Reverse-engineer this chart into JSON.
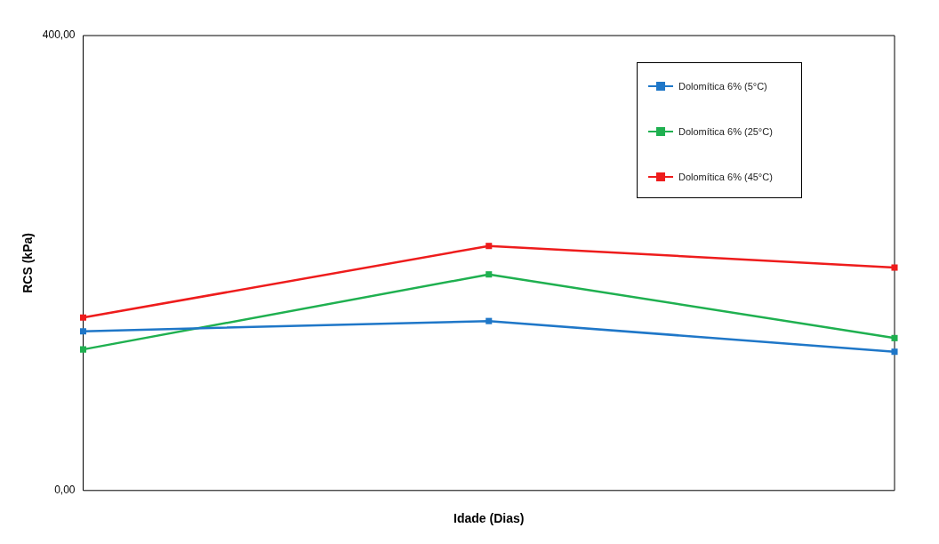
{
  "chart_data": {
    "type": "line",
    "xlabel": "Idade (Dias)",
    "ylabel": "RCS (kPa)",
    "categories": [
      null,
      null,
      null
    ],
    "series": [
      {
        "name": "Dolomítica 6% (5°C)",
        "color": "#1f77c8",
        "values": [
          140,
          149,
          122
        ]
      },
      {
        "name": "Dolomítica 6% (25°C)",
        "color": "#1fb050",
        "values": [
          124,
          190,
          134
        ]
      },
      {
        "name": "Dolomítica 6% (45°C)",
        "color": "#ee1c1c",
        "values": [
          152,
          215,
          196
        ]
      }
    ],
    "ylim": [
      0,
      400
    ],
    "yticks": [
      {
        "value": 0,
        "label": "0,00"
      },
      {
        "value": 400,
        "label": "400,00"
      }
    ],
    "grid": false,
    "legend": "top right",
    "marker": "square",
    "line_style": "solid"
  }
}
